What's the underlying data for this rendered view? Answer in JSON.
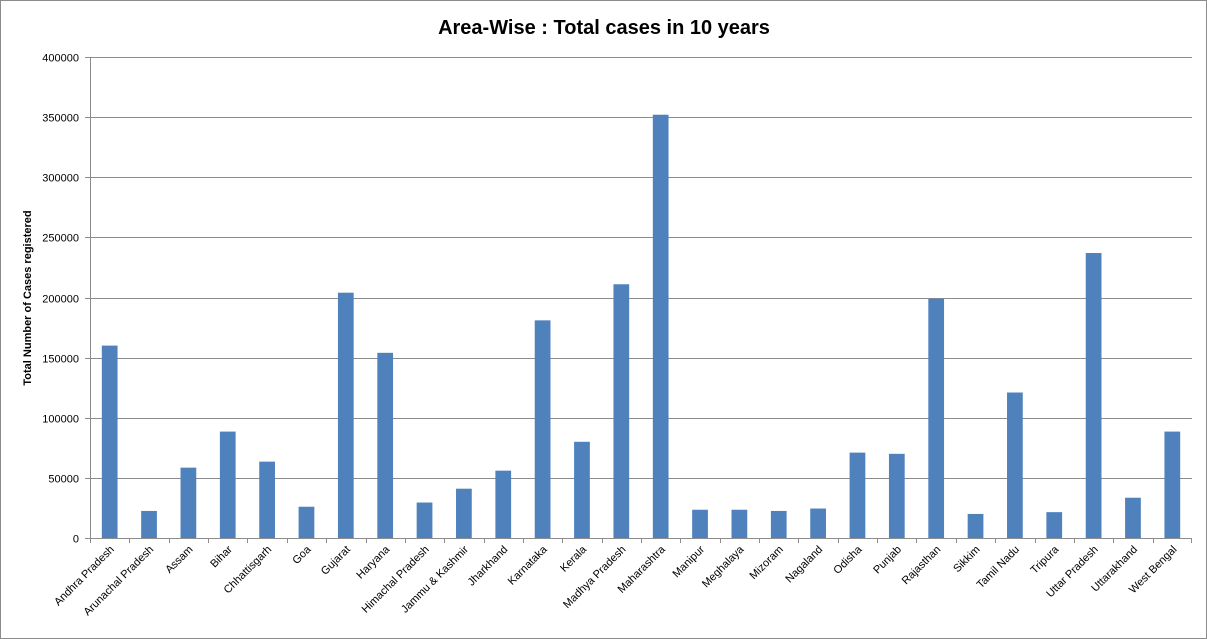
{
  "chart_data": {
    "type": "bar",
    "title": "Area-Wise : Total cases in 10 years",
    "xlabel": "",
    "ylabel": "Total Number of Cases registered",
    "ylim": [
      0,
      400000
    ],
    "yticks": [
      0,
      50000,
      100000,
      150000,
      200000,
      250000,
      300000,
      350000,
      400000
    ],
    "grid": true,
    "legend": "none",
    "bar_color": "#4f81bd",
    "categories": [
      "Andhra Pradesh",
      "Arunachal Pradesh",
      "Assam",
      "Bihar",
      "Chhattisgarh",
      "Goa",
      "Gujarat",
      "Haryana",
      "Himachal Pradesh",
      "Jammu & Kashmir",
      "Jharkhand",
      "Karnataka",
      "Kerala",
      "Madhya Pradesh",
      "Maharashtra",
      "Manipur",
      "Meghalaya",
      "Mizoram",
      "Nagaland",
      "Odisha",
      "Punjab",
      "Rajasthan",
      "Sikkim",
      "Tamil Nadu",
      "Tripura",
      "Uttar Pradesh",
      "Uttarakhand",
      "West Bengal"
    ],
    "values": [
      160000,
      22500,
      58500,
      88500,
      63500,
      26000,
      204000,
      154000,
      29500,
      41000,
      56000,
      181000,
      80000,
      211000,
      352000,
      23500,
      23500,
      22500,
      24500,
      71000,
      70000,
      199000,
      20000,
      121000,
      21500,
      237000,
      33500,
      88500
    ]
  }
}
